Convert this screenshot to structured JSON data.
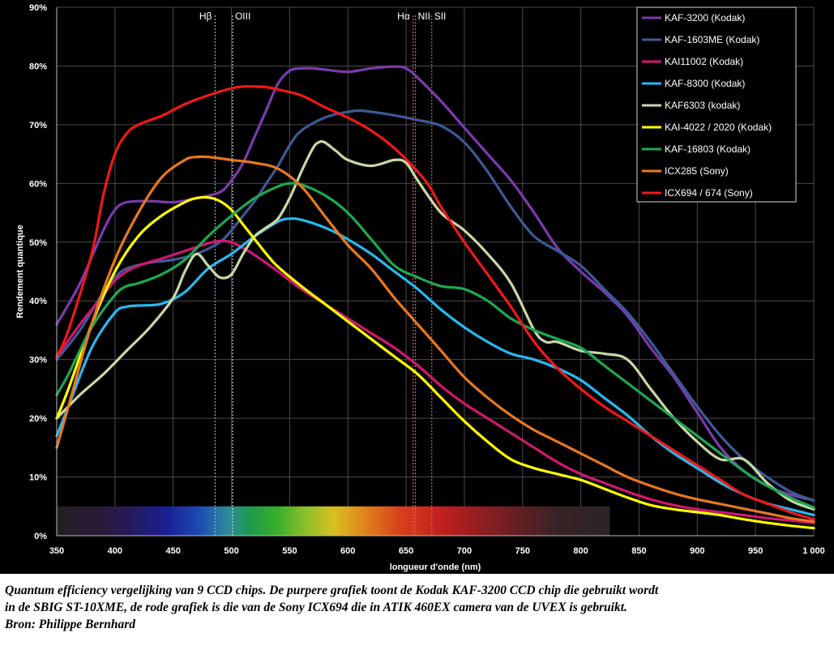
{
  "caption": {
    "line1": "Quantum efficiency vergelijking van 9 CCD chips. De purpere grafiek toont de Kodak KAF-3200 CCD chip die gebruikt wordt",
    "line2": "in de SBIG ST-10XME, de rode grafiek is die van de Sony ICX694 die in ATIK 460EX camera van de UVEX is gebruikt.",
    "line3": "Bron: Philippe Bernhard"
  },
  "chart_data": {
    "type": "line",
    "title": "",
    "xlabel": "longueur d'onde (nm)",
    "ylabel": "Rendement quantique",
    "xlim": [
      350,
      1000
    ],
    "ylim": [
      0,
      90
    ],
    "x_ticks": [
      350,
      400,
      450,
      500,
      550,
      600,
      650,
      700,
      750,
      800,
      850,
      900,
      950,
      1000
    ],
    "x_tick_labels": [
      "350",
      "400",
      "450",
      "500",
      "550",
      "600",
      "650",
      "700",
      "750",
      "800",
      "850",
      "900",
      "950",
      "1 000"
    ],
    "y_ticks": [
      0,
      10,
      20,
      30,
      40,
      50,
      60,
      70,
      80,
      90
    ],
    "y_tick_labels": [
      "0%",
      "10%",
      "20%",
      "30%",
      "40%",
      "50%",
      "60%",
      "70%",
      "80%",
      "90%"
    ],
    "grid": true,
    "legend": "top-right",
    "spectral_lines": [
      {
        "label": "Hβ",
        "x": 486,
        "color": "#7fb0d8"
      },
      {
        "label": "OIII",
        "x": 501,
        "color": "#c8d8e8"
      },
      {
        "label": "Hα",
        "x": 656,
        "color": "#d06060"
      },
      {
        "label": "NII",
        "x": 658,
        "color": "#d06060"
      },
      {
        "label": "SII",
        "x": 672,
        "color": "#d06060"
      }
    ],
    "spectrum_band": {
      "x_start": 350,
      "x_end": 825,
      "y_top": 5
    },
    "series": [
      {
        "name": "KAF-3200 (Kodak)",
        "color": "#7c3ab0",
        "x": [
          350,
          370,
          390,
          400,
          410,
          430,
          450,
          470,
          490,
          500,
          510,
          520,
          530,
          540,
          550,
          560,
          570,
          580,
          600,
          620,
          640,
          650,
          660,
          680,
          700,
          720,
          740,
          760,
          780,
          800,
          820,
          840,
          860,
          880,
          900,
          920,
          940,
          960,
          980,
          1000
        ],
        "y": [
          36,
          43,
          52,
          55.5,
          56.8,
          57,
          56.8,
          57.5,
          58.5,
          60.5,
          63.5,
          68,
          72.5,
          77,
          79.2,
          79.6,
          79.6,
          79.4,
          79,
          79.6,
          79.9,
          79.6,
          78,
          74,
          69.5,
          65,
          60.5,
          55,
          49,
          45,
          41.5,
          37.5,
          32,
          27,
          21,
          15,
          11,
          8.5,
          7,
          6
        ]
      },
      {
        "name": "KAF-1603ME (Kodak)",
        "color": "#3c5a96",
        "x": [
          350,
          370,
          390,
          400,
          410,
          430,
          450,
          470,
          490,
          500,
          510,
          520,
          530,
          540,
          550,
          560,
          580,
          600,
          610,
          620,
          640,
          660,
          680,
          700,
          720,
          740,
          760,
          780,
          800,
          820,
          840,
          860,
          880,
          900,
          920,
          940,
          960,
          980,
          1000
        ],
        "y": [
          30,
          35,
          41.5,
          44,
          45.5,
          46.5,
          47,
          48,
          50,
          52,
          54.5,
          57,
          60,
          63,
          66.5,
          69,
          71.2,
          72.2,
          72.4,
          72.2,
          71.6,
          70.8,
          69.8,
          67,
          62,
          56,
          51,
          48.5,
          46,
          42,
          38,
          33,
          27.5,
          22,
          17,
          13,
          10,
          7.5,
          6
        ]
      },
      {
        "name": "KAI11002 (Kodak)",
        "color": "#d01870",
        "x": [
          350,
          370,
          390,
          400,
          410,
          420,
          440,
          460,
          480,
          490,
          500,
          510,
          520,
          540,
          560,
          580,
          600,
          620,
          640,
          660,
          680,
          700,
          720,
          740,
          760,
          780,
          800,
          820,
          840,
          860,
          880,
          900,
          920,
          940,
          960,
          980,
          1000
        ],
        "y": [
          30.5,
          36,
          41,
          43.5,
          45,
          46,
          47.2,
          48.5,
          49.8,
          50.2,
          50,
          49,
          47.8,
          45,
          42,
          39.5,
          37,
          34.5,
          32,
          29,
          25.5,
          22.5,
          20,
          17.5,
          15,
          12.5,
          10.5,
          9,
          7.5,
          6.2,
          5.2,
          4.5,
          4,
          3.5,
          3,
          2.6,
          2.2
        ]
      },
      {
        "name": "KAF-8300 (Kodak)",
        "color": "#28b8f0",
        "x": [
          350,
          360,
          380,
          400,
          410,
          420,
          440,
          460,
          480,
          500,
          520,
          540,
          550,
          560,
          580,
          600,
          620,
          640,
          660,
          680,
          700,
          720,
          740,
          760,
          780,
          800,
          820,
          840,
          860,
          880,
          900,
          920,
          940,
          960,
          980,
          1000
        ],
        "y": [
          17,
          22,
          32,
          38,
          39,
          39.2,
          39.5,
          41.5,
          45.5,
          48,
          51,
          53.5,
          54,
          53.8,
          52.5,
          50.5,
          48,
          45,
          42,
          38.5,
          35.5,
          33,
          31,
          30,
          28.5,
          26.5,
          23.5,
          20.5,
          17,
          14,
          11.5,
          9,
          7,
          5.5,
          4.5,
          3.5
        ]
      },
      {
        "name": "KAF6303 (kodak)",
        "color": "#c8d8a4",
        "x": [
          350,
          370,
          390,
          410,
          430,
          450,
          460,
          470,
          480,
          490,
          500,
          510,
          520,
          530,
          540,
          550,
          560,
          570,
          575,
          580,
          590,
          600,
          620,
          640,
          650,
          660,
          680,
          700,
          720,
          740,
          760,
          770,
          780,
          800,
          820,
          840,
          860,
          880,
          900,
          920,
          940,
          960,
          980,
          1000
        ],
        "y": [
          20,
          24,
          27.5,
          31.5,
          35.5,
          40.5,
          45,
          48,
          46,
          44,
          44.5,
          48,
          51,
          52.5,
          54,
          57.5,
          62,
          66,
          67,
          67,
          65.5,
          64,
          63,
          64,
          63.5,
          60.5,
          55,
          52,
          48,
          43,
          35,
          33,
          33,
          31.5,
          31,
          30,
          25,
          20,
          16,
          13,
          13,
          9,
          6,
          4.5
        ]
      },
      {
        "name": "KAI-4022 / 2020 (Kodak)",
        "color": "#ffff00",
        "x": [
          350,
          360,
          380,
          400,
          420,
          440,
          460,
          470,
          480,
          490,
          500,
          510,
          520,
          530,
          540,
          560,
          580,
          600,
          620,
          640,
          660,
          680,
          700,
          720,
          740,
          760,
          780,
          800,
          820,
          840,
          860,
          880,
          900,
          920,
          940,
          960,
          980,
          1000
        ],
        "y": [
          20,
          25,
          36,
          45,
          51,
          54.5,
          56.8,
          57.5,
          57.6,
          57,
          55.5,
          53,
          50.5,
          48,
          45.8,
          42.5,
          39.5,
          36.5,
          33.5,
          30.5,
          27.5,
          23.5,
          19.5,
          16,
          13,
          11.5,
          10.5,
          9.5,
          8,
          6.5,
          5.2,
          4.5,
          4,
          3.5,
          2.8,
          2.2,
          1.7,
          1.3
        ]
      },
      {
        "name": "KAF-16803 (Kodak)",
        "color": "#1ea850",
        "x": [
          350,
          360,
          380,
          400,
          410,
          420,
          440,
          460,
          480,
          500,
          520,
          540,
          550,
          560,
          580,
          600,
          620,
          640,
          660,
          680,
          700,
          720,
          740,
          760,
          780,
          800,
          820,
          840,
          860,
          880,
          900,
          920,
          940,
          960,
          980,
          1000
        ],
        "y": [
          24,
          27.5,
          35.5,
          41,
          42.5,
          43,
          44.5,
          47,
          51,
          54.5,
          57.5,
          59.5,
          60,
          59.8,
          58,
          55,
          50.5,
          46,
          44,
          42.5,
          42,
          40,
          37,
          35,
          33.5,
          32,
          29,
          26,
          23,
          20,
          17,
          14,
          11,
          8.5,
          6.5,
          4.8
        ]
      },
      {
        "name": "ICX285 (Sony)",
        "color": "#e87820",
        "x": [
          350,
          360,
          380,
          400,
          420,
          440,
          460,
          470,
          480,
          500,
          520,
          540,
          560,
          580,
          600,
          620,
          640,
          660,
          680,
          700,
          720,
          740,
          760,
          780,
          800,
          820,
          840,
          860,
          880,
          900,
          920,
          940,
          960,
          980,
          1000
        ],
        "y": [
          15,
          22,
          36,
          47,
          55,
          61,
          64,
          64.5,
          64.5,
          64,
          63.5,
          62.5,
          59.5,
          54.5,
          49.5,
          45.5,
          40.5,
          36,
          31.5,
          27,
          23.5,
          20.5,
          18,
          16,
          14,
          12,
          10,
          8.5,
          7.2,
          6.2,
          5.4,
          4.6,
          3.8,
          3,
          2.4
        ]
      },
      {
        "name": "ICX694 / 674 (Sony)",
        "color": "#f01818",
        "x": [
          350,
          360,
          380,
          390,
          400,
          410,
          420,
          440,
          460,
          480,
          500,
          510,
          520,
          530,
          540,
          560,
          580,
          600,
          620,
          640,
          660,
          670,
          680,
          700,
          720,
          740,
          760,
          780,
          800,
          820,
          840,
          860,
          880,
          900,
          920,
          940,
          960,
          980,
          1000
        ],
        "y": [
          30.5,
          35,
          48,
          58,
          65,
          68.5,
          70,
          71.5,
          73.5,
          75,
          76.2,
          76.5,
          76.5,
          76.4,
          76,
          75,
          73,
          71.2,
          69,
          66,
          62,
          59.5,
          56,
          50,
          44.5,
          39,
          33,
          28.5,
          25,
          22,
          19.5,
          17,
          14.5,
          12,
          9.5,
          7,
          5.5,
          4,
          2.8
        ]
      }
    ]
  }
}
